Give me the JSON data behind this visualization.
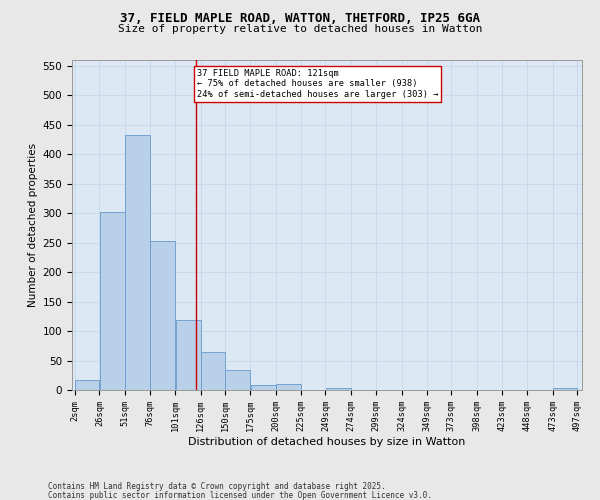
{
  "title_line1": "37, FIELD MAPLE ROAD, WATTON, THETFORD, IP25 6GA",
  "title_line2": "Size of property relative to detached houses in Watton",
  "xlabel": "Distribution of detached houses by size in Watton",
  "ylabel": "Number of detached properties",
  "footnote1": "Contains HM Land Registry data © Crown copyright and database right 2025.",
  "footnote2": "Contains public sector information licensed under the Open Government Licence v3.0.",
  "bar_color": "#b8d0e8",
  "bar_edge_color": "#6699cc",
  "grid_color": "#c8d8ea",
  "background_color": "#dce8f4",
  "fig_background_color": "#e8e8e8",
  "vline_color": "#cc0000",
  "vline_x": 121,
  "annotation_text": "37 FIELD MAPLE ROAD: 121sqm\n← 75% of detached houses are smaller (938)\n24% of semi-detached houses are larger (303) →",
  "annotation_box_color": "#ffffff",
  "annotation_box_edge": "#cc0000",
  "bins": [
    2,
    26,
    51,
    76,
    101,
    126,
    150,
    175,
    200,
    225,
    249,
    274,
    299,
    324,
    349,
    373,
    398,
    423,
    448,
    473,
    497
  ],
  "bin_labels": [
    "2sqm",
    "26sqm",
    "51sqm",
    "76sqm",
    "101sqm",
    "126sqm",
    "150sqm",
    "175sqm",
    "200sqm",
    "225sqm",
    "249sqm",
    "274sqm",
    "299sqm",
    "324sqm",
    "349sqm",
    "373sqm",
    "398sqm",
    "423sqm",
    "448sqm",
    "473sqm",
    "497sqm"
  ],
  "bar_heights": [
    17,
    302,
    432,
    253,
    118,
    65,
    34,
    9,
    11,
    0,
    4,
    0,
    0,
    0,
    0,
    0,
    0,
    0,
    0,
    3
  ],
  "ylim": [
    0,
    560
  ],
  "yticks": [
    0,
    50,
    100,
    150,
    200,
    250,
    300,
    350,
    400,
    450,
    500,
    550
  ]
}
